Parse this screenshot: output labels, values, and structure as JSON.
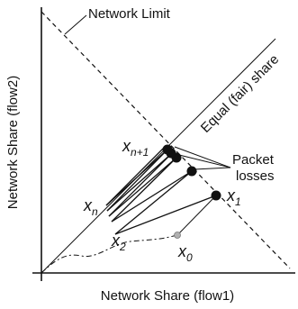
{
  "labels": {
    "network_limit": "Network Limit",
    "fair_share": "Equal (fair) share",
    "packet_losses_1": "Packet",
    "packet_losses_2": "losses",
    "x_axis": "Network Share (flow1)",
    "y_axis": "Network Share (flow2)"
  },
  "points": {
    "x0": {
      "base": "x",
      "sub": "0"
    },
    "x1": {
      "base": "x",
      "sub": "1"
    },
    "x2": {
      "base": "x",
      "sub": "2"
    },
    "xn": {
      "base": "x",
      "sub": "n"
    },
    "xn1": {
      "base": "x",
      "sub": "n+1"
    }
  },
  "colors": {
    "line": "#111111",
    "x0_marker": "#b0b0b0"
  }
}
